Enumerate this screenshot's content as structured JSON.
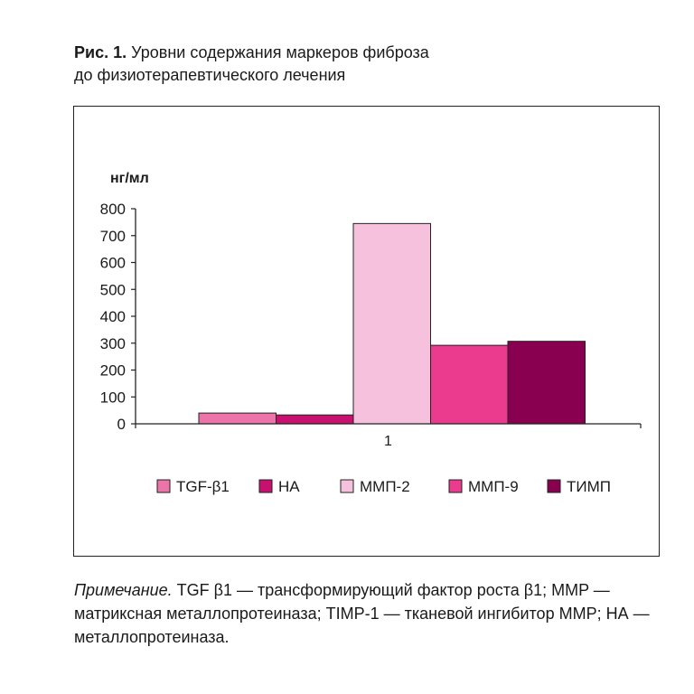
{
  "caption": {
    "label": "Рис. 1.",
    "line1": " Уровни содержания маркеров фиброза",
    "line2": "до физиотерапевтического лечения"
  },
  "note": {
    "lead": "Примечание.",
    "text": " TGF β1 — трансформирующий фактор роста β1; MMP — матриксная металлопротеиназа; TIMP-1 — тканевой ингибитор MMP; НА — металлопротеиназа."
  },
  "chart_data": {
    "type": "bar",
    "ylabel": "нг/мл",
    "categories": [
      "1"
    ],
    "ylim": [
      0,
      800
    ],
    "yticks": [
      0,
      100,
      200,
      300,
      400,
      500,
      600,
      700,
      800
    ],
    "legend_position": "bottom",
    "series": [
      {
        "name": "TGF-β1",
        "values": [
          40
        ],
        "color": "#ec74a8"
      },
      {
        "name": "НА",
        "values": [
          33
        ],
        "color": "#c8106e"
      },
      {
        "name": "ММП-2",
        "values": [
          745
        ],
        "color": "#f6c1dc"
      },
      {
        "name": "ММП-9",
        "values": [
          292
        ],
        "color": "#ea3b8f"
      },
      {
        "name": "ТИМП",
        "values": [
          307
        ],
        "color": "#8a0050"
      }
    ]
  }
}
